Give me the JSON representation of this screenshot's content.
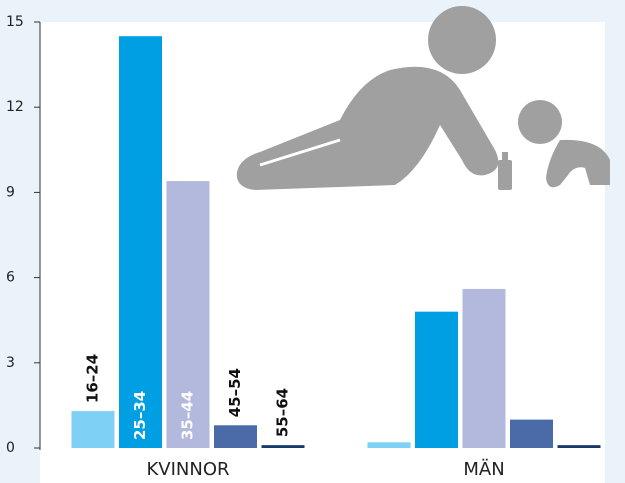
{
  "chart_data": {
    "type": "bar",
    "categories": [
      "KVINNOR",
      "MÄN"
    ],
    "series": [
      {
        "name": "16–24",
        "color": "#7fd0f5",
        "values": [
          1.3,
          0.2
        ]
      },
      {
        "name": "25–34",
        "color": "#009fe3",
        "values": [
          14.5,
          4.8
        ]
      },
      {
        "name": "35–44",
        "color": "#b3b9dc",
        "values": [
          9.4,
          5.6
        ]
      },
      {
        "name": "45–54",
        "color": "#4b6aa8",
        "values": [
          0.8,
          1.0
        ]
      },
      {
        "name": "55–64",
        "color": "#17386b",
        "values": [
          0.1,
          0.1
        ]
      }
    ],
    "ylim": [
      0,
      15
    ],
    "yticks": [
      0,
      3,
      6,
      9,
      12,
      15
    ]
  }
}
